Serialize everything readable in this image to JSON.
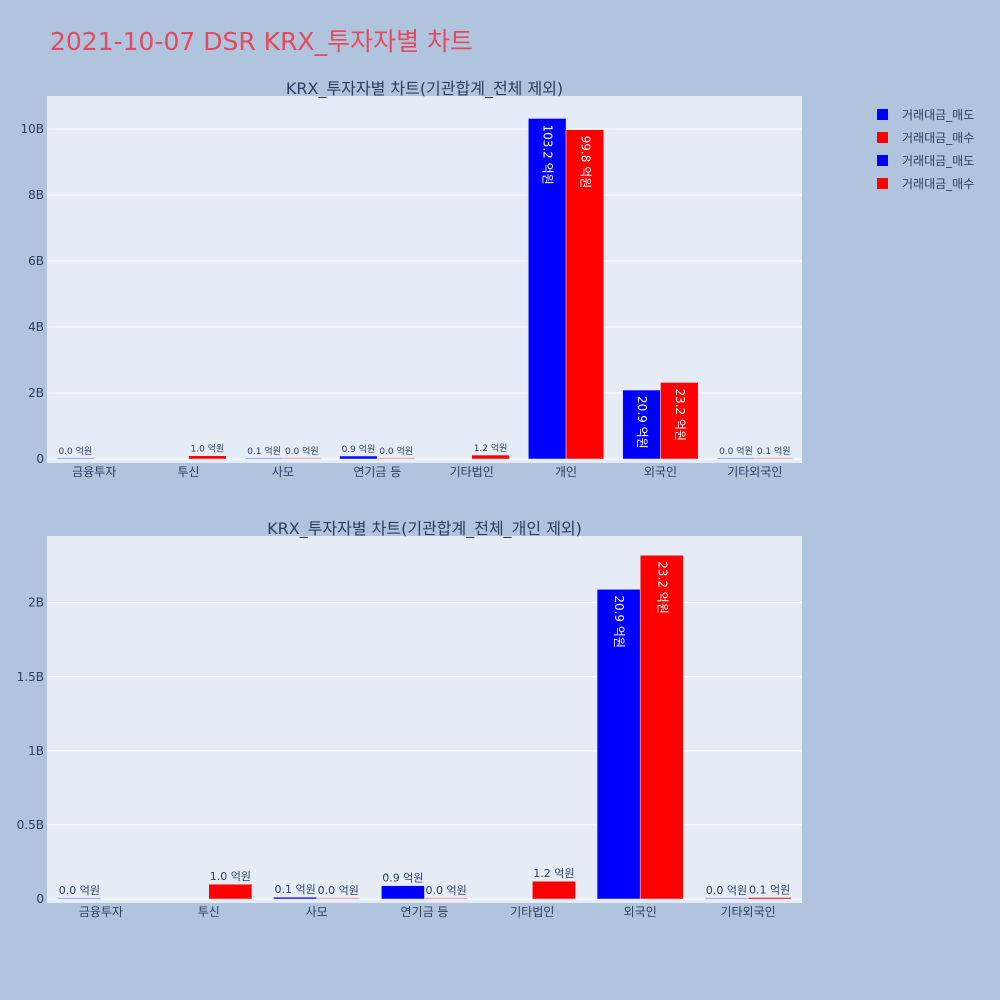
{
  "page_title": "2021-10-07 DSR KRX_투자자별 차트",
  "legend": [
    {
      "label": "거래대금_매도",
      "color": "#0000ff"
    },
    {
      "label": "거래대금_매수",
      "color": "#ff0000"
    },
    {
      "label": "거래대금_매도",
      "color": "#0000ff"
    },
    {
      "label": "거래대금_매수",
      "color": "#ff0000"
    }
  ],
  "chart_data": [
    {
      "type": "bar",
      "title": "KRX_투자자별 차트(기관합계_전체 제외)",
      "categories": [
        "금융투자",
        "투신",
        "사모",
        "연기금 등",
        "기타법인",
        "개인",
        "외국인",
        "기타외국인"
      ],
      "series": [
        {
          "name": "거래대금_매도",
          "color": "#0000ff",
          "values": [
            0.004,
            null,
            0.012,
            0.09,
            null,
            10.32,
            2.09,
            0.003
          ],
          "labels": [
            "0.0 억원",
            null,
            "0.1 억원",
            "0.9 억원",
            null,
            "103.2 억원",
            "20.9 억원",
            "0.0 억원"
          ]
        },
        {
          "name": "거래대금_매수",
          "color": "#ff0000",
          "values": [
            null,
            0.1,
            0.002,
            0.003,
            0.12,
            9.98,
            2.32,
            0.01
          ],
          "labels": [
            null,
            "1.0 억원",
            "0.0 억원",
            "0.0 억원",
            "1.2 억원",
            "99.8 억원",
            "23.2 억원",
            "0.1 억원"
          ]
        }
      ],
      "ylim": [
        0,
        11
      ],
      "yticks": [
        0,
        2,
        4,
        6,
        8,
        10
      ],
      "ytick_labels": [
        "0",
        "2B",
        "4B",
        "6B",
        "8B",
        "10B"
      ],
      "grid": true
    },
    {
      "type": "bar",
      "title": "KRX_투자자별 차트(기관합계_전체_개인 제외)",
      "categories": [
        "금융투자",
        "투신",
        "사모",
        "연기금 등",
        "기타법인",
        "외국인",
        "기타외국인"
      ],
      "series": [
        {
          "name": "거래대금_매도",
          "color": "#0000ff",
          "values": [
            0.004,
            null,
            0.012,
            0.09,
            null,
            2.09,
            0.003
          ],
          "labels": [
            "0.0 억원",
            null,
            "0.1 억원",
            "0.9 억원",
            null,
            "20.9 억원",
            "0.0 억원"
          ]
        },
        {
          "name": "거래대금_매수",
          "color": "#ff0000",
          "values": [
            null,
            0.1,
            0.002,
            0.003,
            0.12,
            2.32,
            0.01
          ],
          "labels": [
            null,
            "1.0 억원",
            "0.0 억원",
            "0.0 억원",
            "1.2 억원",
            "23.2 억원",
            "0.1 억원"
          ]
        }
      ],
      "ylim": [
        0,
        2.45
      ],
      "yticks": [
        0,
        0.5,
        1,
        1.5,
        2
      ],
      "ytick_labels": [
        "0",
        "0.5B",
        "1B",
        "1.5B",
        "2B"
      ],
      "grid": true
    }
  ]
}
